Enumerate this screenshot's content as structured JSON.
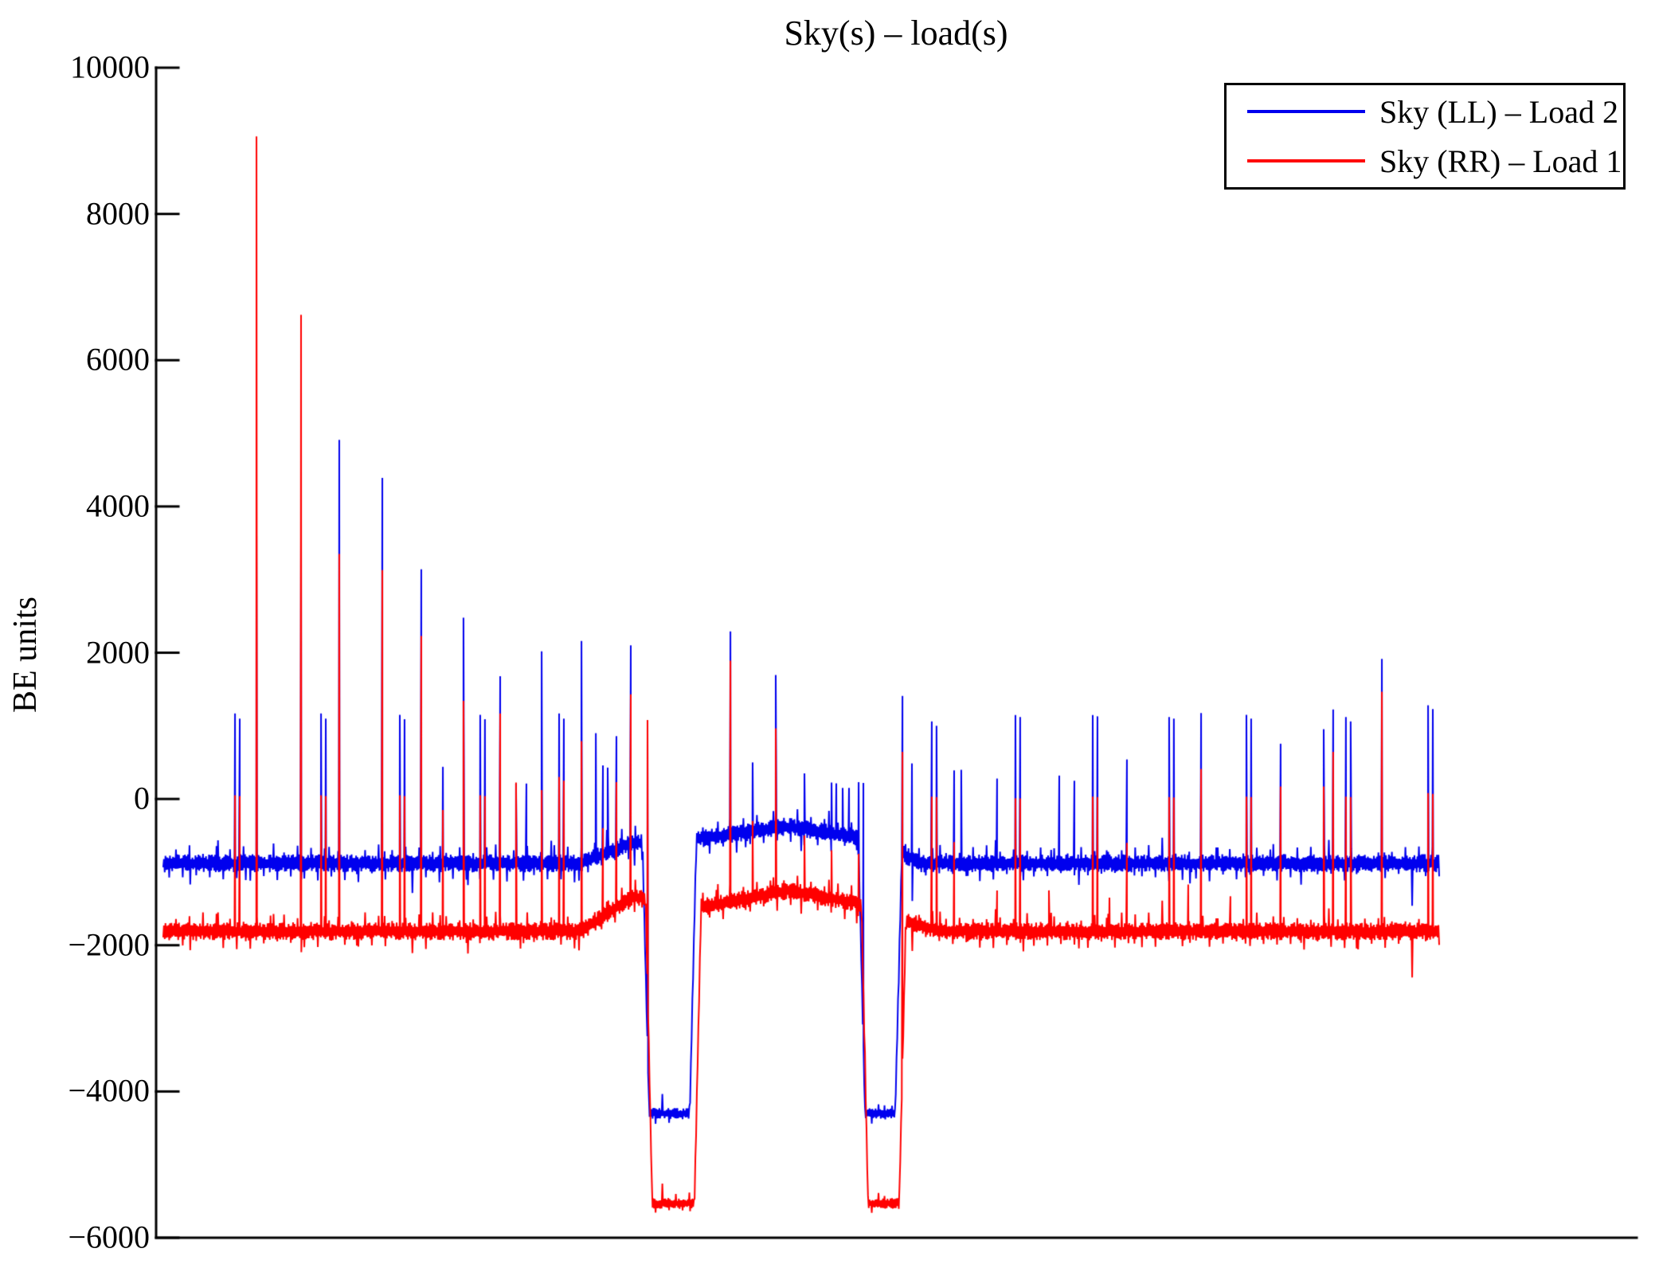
{
  "chart_data": {
    "type": "line",
    "title": "Sky(s) – load(s)",
    "ylabel": "BE units",
    "xlabel": "",
    "ylim": [
      -6000,
      10000
    ],
    "yticks": [
      10000,
      8000,
      6000,
      4000,
      2000,
      0,
      -2000,
      -4000,
      -6000
    ],
    "xticks": [],
    "grid": false,
    "legend_position": "top-right",
    "legend": [
      {
        "label": "Sky (LL) – Load 2",
        "color": "#0000ee"
      },
      {
        "label": "Sky (RR) – Load 1",
        "color": "#ff0000"
      }
    ],
    "domain": [
      0.0048,
      0.8666
    ],
    "samples": 1700,
    "noise_seed": 7,
    "series": [
      {
        "name": "Sky (LL) – Load 2",
        "color": "#0000ee",
        "noise": 95,
        "base_segments": [
          [
            0.0048,
            -880
          ],
          [
            0.287,
            -880
          ],
          [
            0.3206,
            -600
          ],
          [
            0.333,
            -600
          ],
          [
            0.3604,
            -560
          ],
          [
            0.4271,
            -380
          ],
          [
            0.4745,
            -520
          ],
          [
            0.4992,
            -700
          ],
          [
            0.517,
            -880
          ],
          [
            0.8666,
            -880
          ]
        ],
        "dips": [
          {
            "start": 0.333,
            "end": 0.3604,
            "level": -4300,
            "ramp": 0.0045
          },
          {
            "start": 0.4788,
            "end": 0.4992,
            "level": -4300,
            "ramp": 0.0045
          }
        ],
        "events": [
          [
            0.0533,
            1170
          ],
          [
            0.0565,
            1100
          ],
          [
            0.0678,
            3600
          ],
          [
            0.0979,
            3550
          ],
          [
            0.1114,
            1170
          ],
          [
            0.1146,
            1100
          ],
          [
            0.1237,
            4910
          ],
          [
            0.1528,
            4390
          ],
          [
            0.1646,
            1150
          ],
          [
            0.1678,
            1090
          ],
          [
            0.1791,
            3140
          ],
          [
            0.1937,
            440
          ],
          [
            0.2076,
            2480
          ],
          [
            0.2189,
            1150
          ],
          [
            0.2221,
            1090
          ],
          [
            0.2324,
            1680
          ],
          [
            0.2431,
            210
          ],
          [
            0.2501,
            210
          ],
          [
            0.2604,
            2020
          ],
          [
            0.2722,
            1170
          ],
          [
            0.2754,
            1100
          ],
          [
            0.2873,
            2160
          ],
          [
            0.297,
            900
          ],
          [
            0.3018,
            460
          ],
          [
            0.305,
            430
          ],
          [
            0.3109,
            860
          ],
          [
            0.3206,
            2100
          ],
          [
            0.3319,
            1080
          ],
          [
            0.3879,
            2290
          ],
          [
            0.4029,
            500
          ],
          [
            0.4185,
            1695
          ],
          [
            0.4379,
            350
          ],
          [
            0.4562,
            225
          ],
          [
            0.4594,
            215
          ],
          [
            0.4637,
            150
          ],
          [
            0.468,
            150
          ],
          [
            0.4745,
            230
          ],
          [
            0.4777,
            220
          ],
          [
            0.5041,
            1410
          ],
          [
            0.5105,
            485
          ],
          [
            0.5239,
            1060
          ],
          [
            0.5271,
            1000
          ],
          [
            0.539,
            390
          ],
          [
            0.5438,
            400
          ],
          [
            0.568,
            280
          ],
          [
            0.5804,
            1148
          ],
          [
            0.5836,
            1120
          ],
          [
            0.61,
            320
          ],
          [
            0.6202,
            250
          ],
          [
            0.6326,
            1148
          ],
          [
            0.6358,
            1130
          ],
          [
            0.6557,
            540
          ],
          [
            0.6842,
            1120
          ],
          [
            0.6874,
            1100
          ],
          [
            0.7058,
            1175
          ],
          [
            0.7364,
            1150
          ],
          [
            0.7396,
            1100
          ],
          [
            0.7595,
            755
          ],
          [
            0.7886,
            955
          ],
          [
            0.795,
            1225
          ],
          [
            0.8036,
            1120
          ],
          [
            0.8068,
            1060
          ],
          [
            0.8279,
            1915
          ],
          [
            0.8591,
            1280
          ],
          [
            0.8623,
            1230
          ]
        ]
      },
      {
        "name": "Sky (RR) – Load 1",
        "color": "#ff0000",
        "noise": 95,
        "base_segments": [
          [
            0.0048,
            -1810
          ],
          [
            0.287,
            -1810
          ],
          [
            0.3206,
            -1350
          ],
          [
            0.3351,
            -1350
          ],
          [
            0.3636,
            -1500
          ],
          [
            0.4271,
            -1250
          ],
          [
            0.4809,
            -1450
          ],
          [
            0.5019,
            -1650
          ],
          [
            0.53,
            -1810
          ],
          [
            0.8666,
            -1810
          ]
        ],
        "dips": [
          {
            "start": 0.3351,
            "end": 0.3636,
            "level": -5530,
            "ramp": 0.0045
          },
          {
            "start": 0.4809,
            "end": 0.5019,
            "level": -5530,
            "ramp": 0.0045
          }
        ],
        "events": [
          [
            0.0533,
            50
          ],
          [
            0.0565,
            40
          ],
          [
            0.0678,
            9060
          ],
          [
            0.0979,
            6620
          ],
          [
            0.1114,
            50
          ],
          [
            0.1146,
            40
          ],
          [
            0.1237,
            3350
          ],
          [
            0.1528,
            3130
          ],
          [
            0.1646,
            50
          ],
          [
            0.1678,
            40
          ],
          [
            0.1791,
            2230
          ],
          [
            0.1937,
            -150
          ],
          [
            0.2076,
            1340
          ],
          [
            0.2189,
            50
          ],
          [
            0.2221,
            40
          ],
          [
            0.2324,
            1170
          ],
          [
            0.2431,
            225
          ],
          [
            0.2604,
            120
          ],
          [
            0.2722,
            300
          ],
          [
            0.2754,
            250
          ],
          [
            0.2873,
            790
          ],
          [
            0.3018,
            -400
          ],
          [
            0.3109,
            230
          ],
          [
            0.3206,
            1430
          ],
          [
            0.3319,
            1080
          ],
          [
            0.3879,
            1890
          ],
          [
            0.4029,
            -300
          ],
          [
            0.4185,
            965
          ],
          [
            0.4379,
            -500
          ],
          [
            0.4562,
            -700
          ],
          [
            0.4745,
            -750
          ],
          [
            0.5041,
            645
          ],
          [
            0.5239,
            30
          ],
          [
            0.5271,
            25
          ],
          [
            0.539,
            -590
          ],
          [
            0.568,
            -1250
          ],
          [
            0.5804,
            10
          ],
          [
            0.5836,
            8
          ],
          [
            0.603,
            -1250
          ],
          [
            0.6326,
            30
          ],
          [
            0.6358,
            25
          ],
          [
            0.6439,
            -1350
          ],
          [
            0.6557,
            -600
          ],
          [
            0.6842,
            25
          ],
          [
            0.6874,
            20
          ],
          [
            0.6971,
            -1170
          ],
          [
            0.7058,
            410
          ],
          [
            0.7256,
            -1330
          ],
          [
            0.7364,
            30
          ],
          [
            0.7396,
            25
          ],
          [
            0.7595,
            170
          ],
          [
            0.7886,
            170
          ],
          [
            0.795,
            645
          ],
          [
            0.8036,
            30
          ],
          [
            0.8068,
            25
          ],
          [
            0.8279,
            1465
          ],
          [
            0.8591,
            80
          ],
          [
            0.8623,
            70
          ]
        ]
      }
    ]
  }
}
